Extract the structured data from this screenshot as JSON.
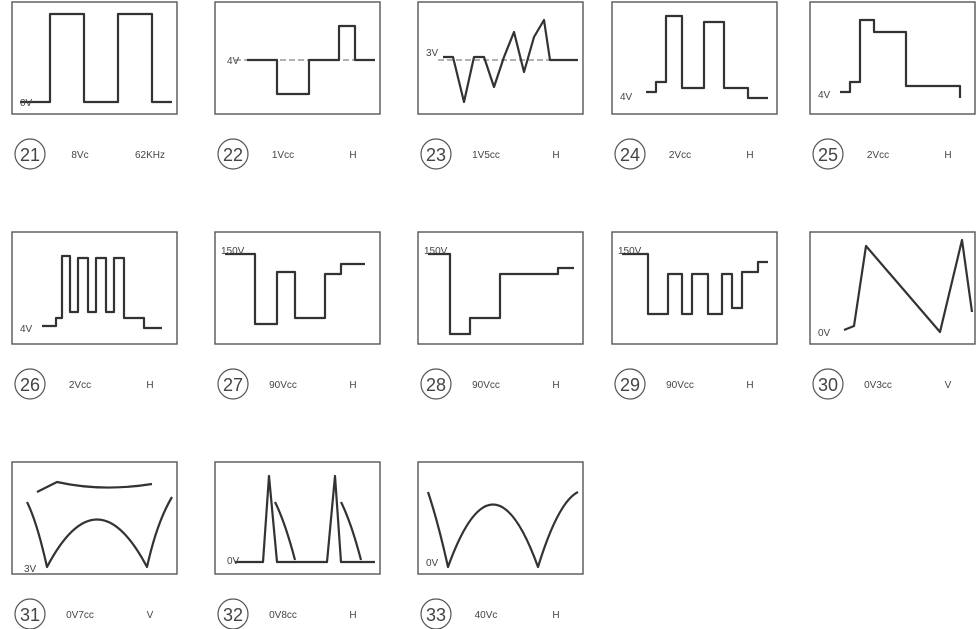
{
  "panels": [
    {
      "number": "21",
      "inner_labels": [
        "0V"
      ],
      "amplitude": "8Vc",
      "timebase": "62KHz"
    },
    {
      "number": "22",
      "inner_labels": [
        "4V"
      ],
      "amplitude": "1Vcc",
      "timebase": "H"
    },
    {
      "number": "23",
      "inner_labels": [
        "3V"
      ],
      "amplitude": "1V5cc",
      "timebase": "H"
    },
    {
      "number": "24",
      "inner_labels": [
        "4V"
      ],
      "amplitude": "2Vcc",
      "timebase": "H"
    },
    {
      "number": "25",
      "inner_labels": [
        "4V"
      ],
      "amplitude": "2Vcc",
      "timebase": "H"
    },
    {
      "number": "26",
      "inner_labels": [
        "4V"
      ],
      "amplitude": "2Vcc",
      "timebase": "H"
    },
    {
      "number": "27",
      "inner_labels": [
        "150V"
      ],
      "amplitude": "90Vcc",
      "timebase": "H"
    },
    {
      "number": "28",
      "inner_labels": [
        "150V"
      ],
      "amplitude": "90Vcc",
      "timebase": "H"
    },
    {
      "number": "29",
      "inner_labels": [
        "150V"
      ],
      "amplitude": "90Vcc",
      "timebase": "H"
    },
    {
      "number": "30",
      "inner_labels": [
        "0V"
      ],
      "amplitude": "0V3cc",
      "timebase": "V"
    },
    {
      "number": "31",
      "inner_labels": [
        "3V"
      ],
      "amplitude": "0V7cc",
      "timebase": "V"
    },
    {
      "number": "32",
      "inner_labels": [
        "0V"
      ],
      "amplitude": "0V8cc",
      "timebase": "H"
    },
    {
      "number": "33",
      "inner_labels": [
        "0V"
      ],
      "amplitude": "40Vc",
      "timebase": "H"
    }
  ]
}
